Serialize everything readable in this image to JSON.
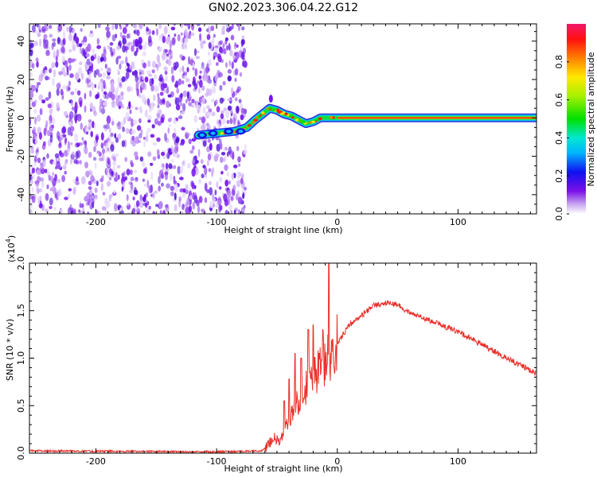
{
  "title": "GN02.2023.306.04.22.G12",
  "chart_data": [
    {
      "type": "heatmap",
      "xlabel": "Height of straight line (km)",
      "ylabel": "Frequency (Hz)",
      "xlim": [
        -255,
        165
      ],
      "ylim": [
        -50,
        49
      ],
      "xticks": [
        -200,
        -100,
        0,
        100
      ],
      "yticks": [
        -40,
        -20,
        0,
        20,
        40
      ],
      "colorbar": {
        "label": "Normalized spectral amplitude",
        "range": [
          0,
          1
        ],
        "ticks": [
          0.0,
          0.2,
          0.4,
          0.6,
          0.8
        ],
        "tick_labels": [
          "0.0",
          "0.2",
          "0.4",
          "0.6",
          "0.8"
        ]
      },
      "track": [
        {
          "x": -115,
          "y": -9
        },
        {
          "x": -100,
          "y": -8
        },
        {
          "x": -85,
          "y": -7
        },
        {
          "x": -75,
          "y": -5
        },
        {
          "x": -68,
          "y": -1
        },
        {
          "x": -62,
          "y": 2
        },
        {
          "x": -56,
          "y": 5
        },
        {
          "x": -50,
          "y": 4
        },
        {
          "x": -44,
          "y": 2
        },
        {
          "x": -38,
          "y": 1
        },
        {
          "x": -32,
          "y": -1
        },
        {
          "x": -26,
          "y": -3
        },
        {
          "x": -20,
          "y": -2
        },
        {
          "x": -14,
          "y": 0
        },
        {
          "x": 0,
          "y": 0
        },
        {
          "x": 165,
          "y": 0
        }
      ],
      "noise_region_x": [
        -255,
        -80
      ]
    },
    {
      "type": "line",
      "xlabel": "Height of straight line (km)",
      "ylabel": "SNR (10 * v/v)",
      "scale_label": "(x10",
      "scale_exp": "4",
      "scale_close": ")",
      "xlim": [
        -255,
        165
      ],
      "ylim": [
        0,
        2.0
      ],
      "xticks": [
        -200,
        -100,
        0,
        100
      ],
      "yticks": [
        0.0,
        0.5,
        1.0,
        1.5,
        2.0
      ],
      "ytick_labels": [
        "0.0",
        "0.5",
        "1.0",
        "1.5",
        "2.0"
      ],
      "series_color": "#e8302a",
      "envelope": [
        {
          "x": -255,
          "y": 0.02
        },
        {
          "x": -100,
          "y": 0.01
        },
        {
          "x": -62,
          "y": 0.02
        },
        {
          "x": -55,
          "y": 0.12
        },
        {
          "x": -52,
          "y": 0.18
        },
        {
          "x": -48,
          "y": 0.1
        },
        {
          "x": -40,
          "y": 0.35
        },
        {
          "x": -30,
          "y": 0.6
        },
        {
          "x": -20,
          "y": 0.8
        },
        {
          "x": -10,
          "y": 0.95
        },
        {
          "x": 0,
          "y": 1.15
        },
        {
          "x": 10,
          "y": 1.35
        },
        {
          "x": 20,
          "y": 1.45
        },
        {
          "x": 30,
          "y": 1.55
        },
        {
          "x": 40,
          "y": 1.58
        },
        {
          "x": 50,
          "y": 1.56
        },
        {
          "x": 60,
          "y": 1.48
        },
        {
          "x": 80,
          "y": 1.38
        },
        {
          "x": 100,
          "y": 1.28
        },
        {
          "x": 120,
          "y": 1.14
        },
        {
          "x": 140,
          "y": 1.0
        },
        {
          "x": 165,
          "y": 0.84
        }
      ],
      "spikes": [
        {
          "x": -44,
          "y": 0.55
        },
        {
          "x": -40,
          "y": 0.78
        },
        {
          "x": -35,
          "y": 1.05
        },
        {
          "x": -30,
          "y": 1.0
        },
        {
          "x": -24,
          "y": 1.3
        },
        {
          "x": -20,
          "y": 1.35
        },
        {
          "x": -15,
          "y": 1.05
        },
        {
          "x": -12,
          "y": 1.3
        },
        {
          "x": -7,
          "y": 2.0
        },
        {
          "x": -4,
          "y": 1.2
        }
      ]
    }
  ]
}
